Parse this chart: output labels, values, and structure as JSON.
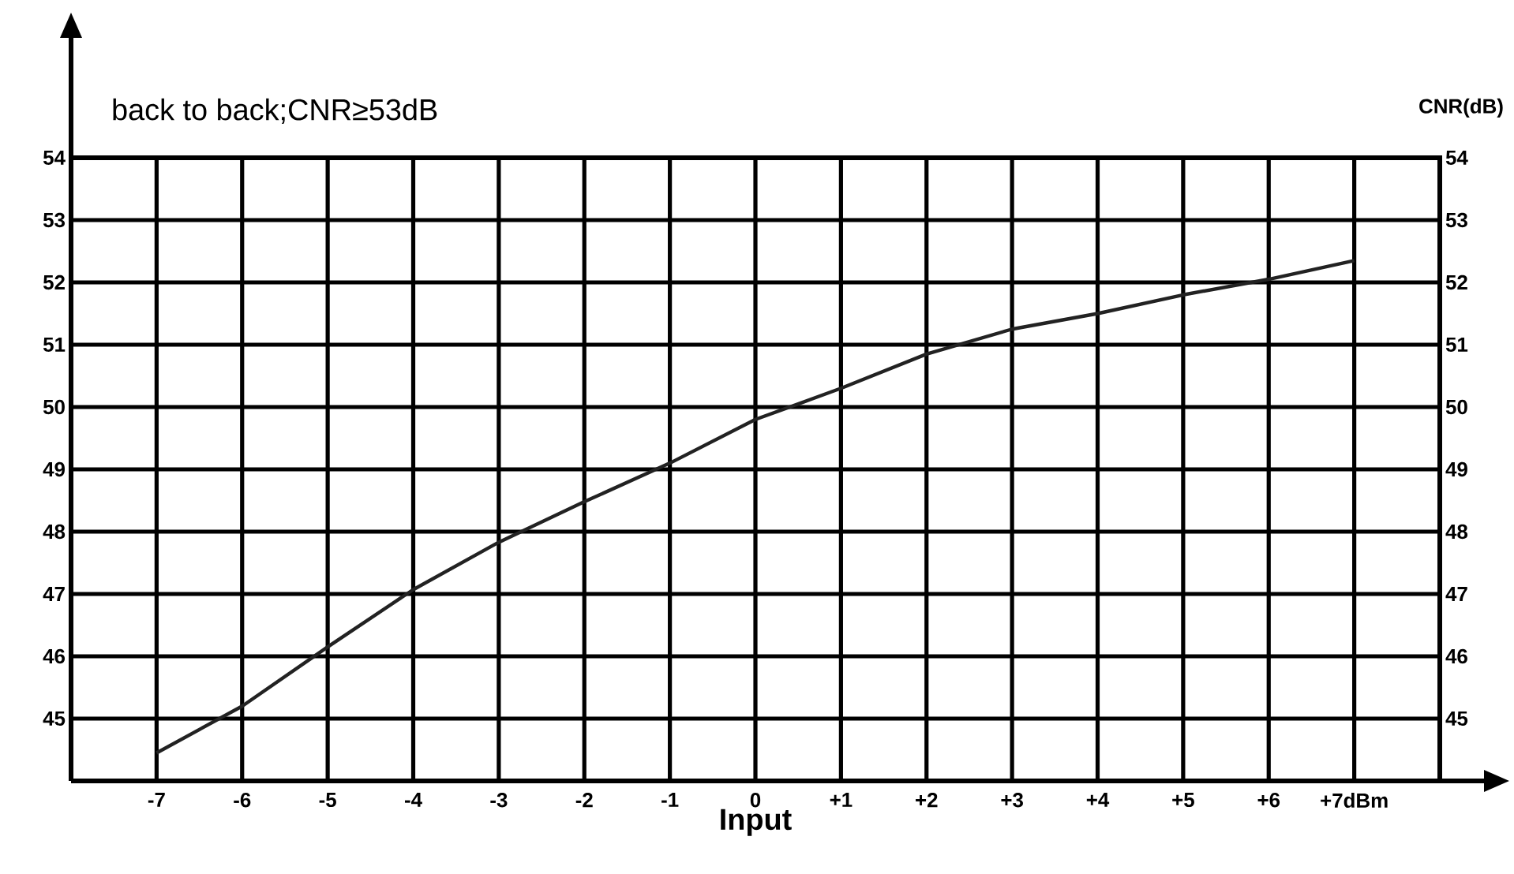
{
  "chart_data": {
    "type": "line",
    "title": "back to back;CNR≥53dB",
    "xlabel": "Input",
    "y2label": "CNR(dB)",
    "x": [
      -7,
      -6,
      -5,
      -4,
      -3,
      -2,
      -1,
      0,
      1,
      2,
      3,
      4,
      5,
      6,
      7
    ],
    "series": [
      {
        "color": "#222222",
        "values": [
          44.45,
          45.2,
          46.15,
          47.07,
          47.83,
          48.48,
          49.1,
          49.8,
          50.3,
          50.85,
          51.25,
          51.5,
          51.8,
          52.05,
          52.35
        ]
      }
    ],
    "xlim": [
      -8,
      8
    ],
    "xticks": [
      -7,
      -6,
      -5,
      -4,
      -3,
      -2,
      -1,
      0,
      {
        "value": 1,
        "label": "+1"
      },
      {
        "value": 2,
        "label": "+2"
      },
      {
        "value": 3,
        "label": "+3"
      },
      {
        "value": 4,
        "label": "+4"
      },
      {
        "value": 5,
        "label": "+5"
      },
      {
        "value": 6,
        "label": "+6"
      },
      {
        "value": 7,
        "label": "+7dBm"
      }
    ],
    "ylim": [
      44,
      54
    ],
    "yticks": [
      45,
      46,
      47,
      48,
      49,
      50,
      51,
      52,
      53,
      54
    ],
    "y2lim": [
      44,
      54
    ],
    "y2ticks": [
      45,
      46,
      47,
      48,
      49,
      50,
      51,
      52,
      53,
      54
    ],
    "grid": true,
    "marker": "none",
    "line_style": "solid"
  }
}
